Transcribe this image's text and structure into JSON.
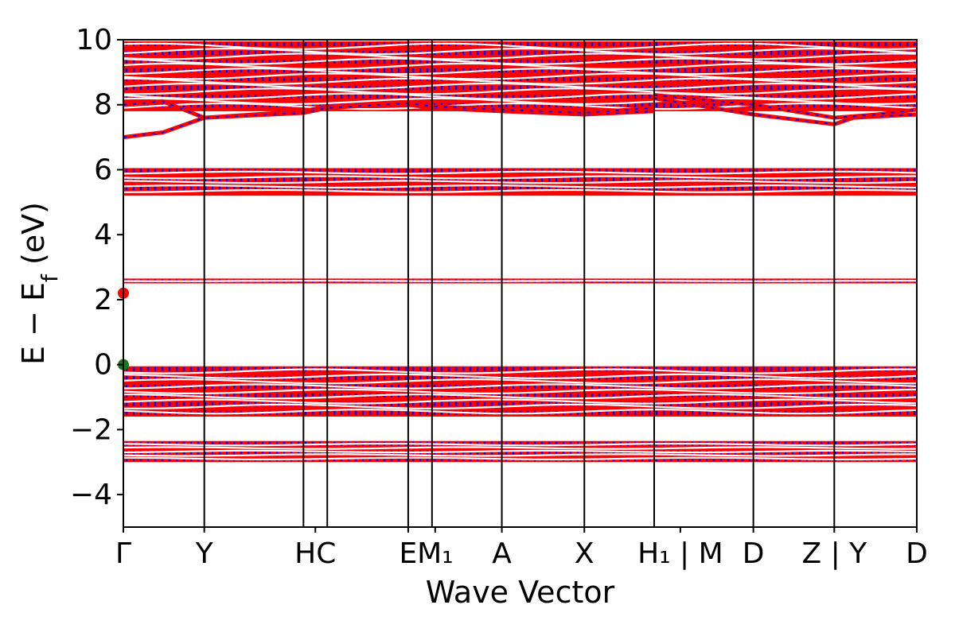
{
  "chart_data": {
    "type": "line",
    "title": "",
    "xlabel": "Wave Vector",
    "ylabel": "E − E_f (eV)",
    "ylabel_main": "E − E",
    "ylabel_sub": "f",
    "ylabel_tail": " (eV)",
    "ylim": [
      -5,
      10
    ],
    "yticks": [
      10,
      8,
      6,
      4,
      2,
      0,
      -2,
      -4
    ],
    "ytick_labels": [
      "10",
      "8",
      "6",
      "4",
      "2",
      "0",
      "−2",
      "−4"
    ],
    "grid": false,
    "legend": "none",
    "kpath_labels": [
      "Γ",
      "Y",
      "HC",
      "E",
      "M₁",
      "A",
      "X",
      "H₁ | M",
      "D",
      "Z | Y",
      "D"
    ],
    "kpath": [
      {
        "label": "Γ",
        "position": 0.0
      },
      {
        "label": "Y",
        "position": 0.102
      },
      {
        "label": "H",
        "position": 0.227
      },
      {
        "label": "C",
        "position": 0.257
      },
      {
        "label": "E",
        "position": 0.359
      },
      {
        "label": "M₁",
        "position": 0.389
      },
      {
        "label": "A",
        "position": 0.477
      },
      {
        "label": "X",
        "position": 0.581
      },
      {
        "label": "H₁ | M",
        "position": 0.669
      },
      {
        "label": "D",
        "position": 0.794
      },
      {
        "label": "Z | Y",
        "position": 0.896
      },
      {
        "label": "D",
        "position": 1.0
      }
    ],
    "colors": {
      "spin_up": "#ff0000",
      "spin_down": "#0000ff",
      "marker_green": "#1a7a1a",
      "marker_red": "#ff0000"
    },
    "bands": [
      {
        "name": "valence-band-lower",
        "energy_min": -3.0,
        "energy_max": -2.35,
        "lines": 6
      },
      {
        "name": "valence-band-upper",
        "energy_min": -1.6,
        "energy_max": -0.05,
        "lines": 10
      },
      {
        "name": "flat-band",
        "energy_min": 2.5,
        "energy_max": 2.65,
        "lines": 2
      },
      {
        "name": "conduction-band-middle",
        "energy_min": 5.2,
        "energy_max": 6.05,
        "lines": 6
      },
      {
        "name": "conduction-band-upper",
        "energy_min": 7.8,
        "energy_max": 9.95,
        "lines": 14
      }
    ],
    "special_points": [
      {
        "name": "vbm",
        "x": 0.0,
        "y": 0.0,
        "color": "#1a7a1a"
      },
      {
        "name": "cbm",
        "x": 0.0,
        "y": 2.2,
        "color": "#ff0000"
      }
    ]
  }
}
